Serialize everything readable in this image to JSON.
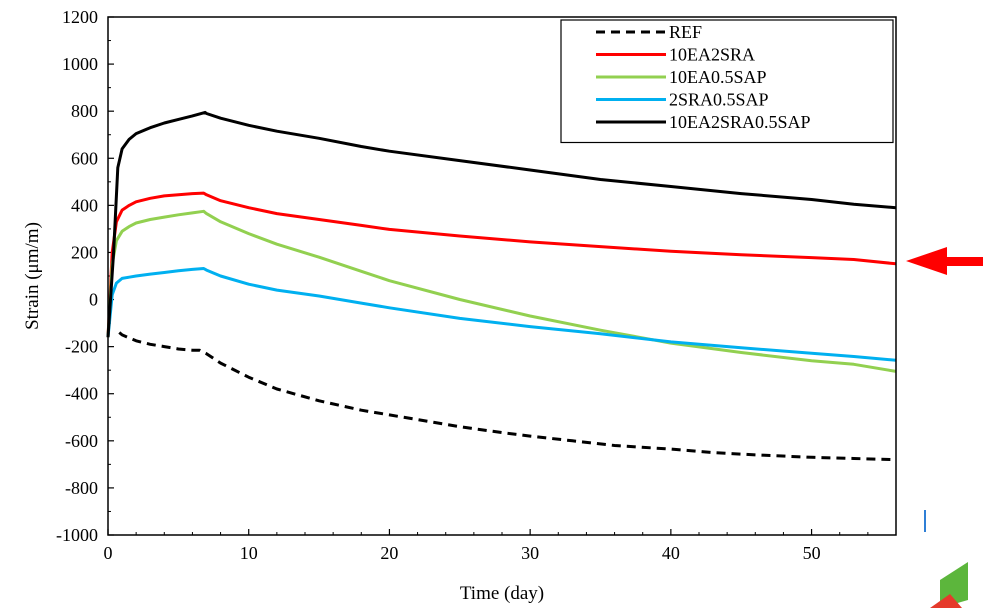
{
  "chart_data": {
    "type": "line",
    "xlabel": "Time (day)",
    "ylabel": "Strain (μm/m)",
    "xlim": [
      0,
      56
    ],
    "ylim": [
      -1000,
      1200
    ],
    "x_ticks": [
      0,
      10,
      20,
      30,
      40,
      50
    ],
    "y_ticks": [
      -1000,
      -800,
      -600,
      -400,
      -200,
      0,
      200,
      400,
      600,
      800,
      1000,
      1200
    ],
    "grid": false,
    "legend_position": "top-right",
    "series": [
      {
        "name": "REF",
        "color": "#000000",
        "dash": "dashed",
        "points": [
          [
            0.8,
            -140
          ],
          [
            1,
            -150
          ],
          [
            2,
            -175
          ],
          [
            3,
            -190
          ],
          [
            4,
            -200
          ],
          [
            5,
            -210
          ],
          [
            6,
            -215
          ],
          [
            6.5,
            -215
          ],
          [
            7,
            -230
          ],
          [
            8,
            -270
          ],
          [
            10,
            -330
          ],
          [
            12,
            -380
          ],
          [
            15,
            -430
          ],
          [
            18,
            -470
          ],
          [
            20,
            -490
          ],
          [
            22,
            -510
          ],
          [
            25,
            -540
          ],
          [
            28,
            -565
          ],
          [
            30,
            -580
          ],
          [
            33,
            -600
          ],
          [
            36,
            -620
          ],
          [
            40,
            -635
          ],
          [
            43,
            -650
          ],
          [
            46,
            -660
          ],
          [
            50,
            -670
          ],
          [
            53,
            -675
          ],
          [
            56,
            -680
          ]
        ]
      },
      {
        "name": "10EA2SRA",
        "color": "#ff0000",
        "dash": "solid",
        "points": [
          [
            0,
            -160
          ],
          [
            0.3,
            200
          ],
          [
            0.6,
            330
          ],
          [
            1,
            380
          ],
          [
            1.5,
            400
          ],
          [
            2,
            415
          ],
          [
            3,
            430
          ],
          [
            4,
            440
          ],
          [
            5,
            445
          ],
          [
            6,
            450
          ],
          [
            6.8,
            452
          ],
          [
            7,
            445
          ],
          [
            8,
            420
          ],
          [
            10,
            390
          ],
          [
            12,
            365
          ],
          [
            15,
            340
          ],
          [
            18,
            315
          ],
          [
            20,
            298
          ],
          [
            25,
            270
          ],
          [
            30,
            245
          ],
          [
            35,
            225
          ],
          [
            40,
            205
          ],
          [
            45,
            190
          ],
          [
            50,
            178
          ],
          [
            53,
            170
          ],
          [
            56,
            152
          ]
        ]
      },
      {
        "name": "10EA0.5SAP",
        "color": "#92d050",
        "dash": "solid",
        "points": [
          [
            0,
            -160
          ],
          [
            0.3,
            150
          ],
          [
            0.6,
            250
          ],
          [
            1,
            290
          ],
          [
            1.5,
            310
          ],
          [
            2,
            325
          ],
          [
            3,
            340
          ],
          [
            4,
            350
          ],
          [
            5,
            360
          ],
          [
            6,
            368
          ],
          [
            6.8,
            375
          ],
          [
            7,
            365
          ],
          [
            8,
            330
          ],
          [
            10,
            280
          ],
          [
            12,
            235
          ],
          [
            15,
            180
          ],
          [
            18,
            120
          ],
          [
            20,
            80
          ],
          [
            25,
            0
          ],
          [
            30,
            -70
          ],
          [
            35,
            -130
          ],
          [
            40,
            -185
          ],
          [
            45,
            -225
          ],
          [
            50,
            -260
          ],
          [
            53,
            -275
          ],
          [
            56,
            -305
          ]
        ]
      },
      {
        "name": "2SRA0.5SAP",
        "color": "#00b0f0",
        "dash": "solid",
        "points": [
          [
            0,
            -160
          ],
          [
            0.3,
            20
          ],
          [
            0.6,
            70
          ],
          [
            1,
            90
          ],
          [
            1.5,
            95
          ],
          [
            2,
            100
          ],
          [
            3,
            108
          ],
          [
            4,
            115
          ],
          [
            5,
            122
          ],
          [
            6,
            128
          ],
          [
            6.8,
            132
          ],
          [
            7,
            125
          ],
          [
            8,
            100
          ],
          [
            10,
            65
          ],
          [
            12,
            40
          ],
          [
            15,
            15
          ],
          [
            18,
            -15
          ],
          [
            20,
            -35
          ],
          [
            25,
            -80
          ],
          [
            30,
            -115
          ],
          [
            35,
            -145
          ],
          [
            40,
            -180
          ],
          [
            45,
            -205
          ],
          [
            50,
            -228
          ],
          [
            53,
            -242
          ],
          [
            56,
            -258
          ]
        ]
      },
      {
        "name": "10EA2SRA0.5SAP",
        "color": "#000000",
        "dash": "solid",
        "points": [
          [
            0,
            -160
          ],
          [
            0.4,
            200
          ],
          [
            0.7,
            560
          ],
          [
            1,
            640
          ],
          [
            1.5,
            680
          ],
          [
            2,
            705
          ],
          [
            3,
            730
          ],
          [
            4,
            750
          ],
          [
            5,
            765
          ],
          [
            6,
            780
          ],
          [
            6.9,
            795
          ],
          [
            7,
            790
          ],
          [
            8,
            770
          ],
          [
            10,
            740
          ],
          [
            12,
            715
          ],
          [
            15,
            685
          ],
          [
            18,
            650
          ],
          [
            20,
            630
          ],
          [
            25,
            590
          ],
          [
            30,
            550
          ],
          [
            35,
            510
          ],
          [
            40,
            480
          ],
          [
            45,
            450
          ],
          [
            50,
            425
          ],
          [
            53,
            405
          ],
          [
            56,
            390
          ]
        ]
      }
    ],
    "annotation": {
      "type": "arrow",
      "color": "#ff0000",
      "points_to_series": "10EA2SRA"
    }
  }
}
